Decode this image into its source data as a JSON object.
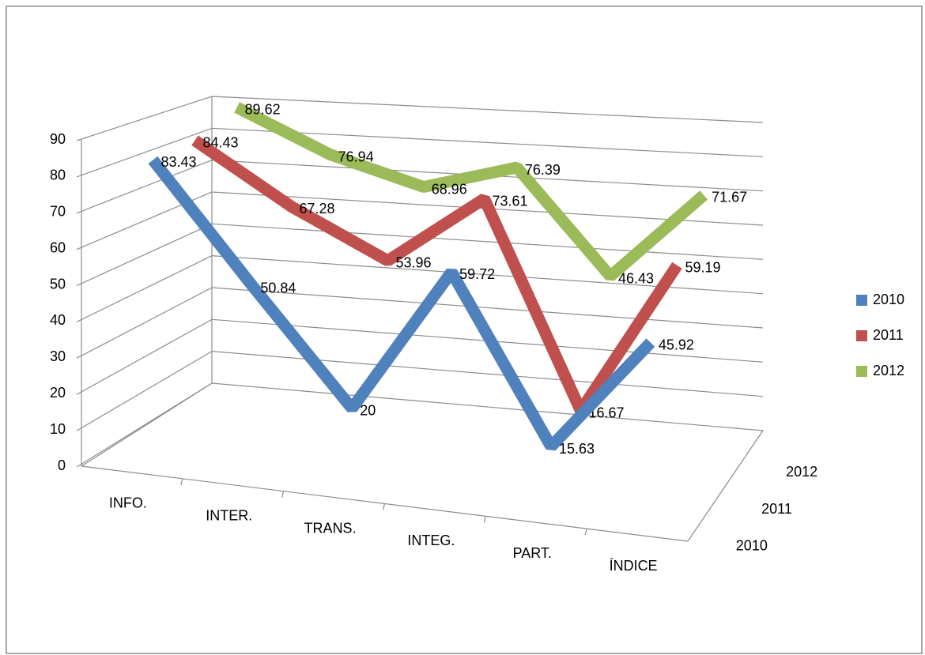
{
  "chart_data": {
    "type": "line3d",
    "categories": [
      "INFO.",
      "INTER.",
      "TRANS.",
      "INTEG.",
      "PART.",
      "ÍNDICE"
    ],
    "depth_categories": [
      "2010",
      "2011",
      "2012"
    ],
    "series": [
      {
        "name": "2010",
        "color": "#4f81bd",
        "values": [
          83.43,
          50.84,
          20,
          59.72,
          15.63,
          45.92
        ]
      },
      {
        "name": "2011",
        "color": "#c0504d",
        "values": [
          84.43,
          67.28,
          53.96,
          73.61,
          16.67,
          59.19
        ]
      },
      {
        "name": "2012",
        "color": "#9bbb59",
        "values": [
          89.62,
          76.94,
          68.96,
          76.39,
          46.43,
          71.67
        ]
      }
    ],
    "ylim": [
      0,
      90
    ],
    "yticks": [
      0,
      10,
      20,
      30,
      40,
      50,
      60,
      70,
      80,
      90
    ],
    "grid": true,
    "legend": "right"
  }
}
